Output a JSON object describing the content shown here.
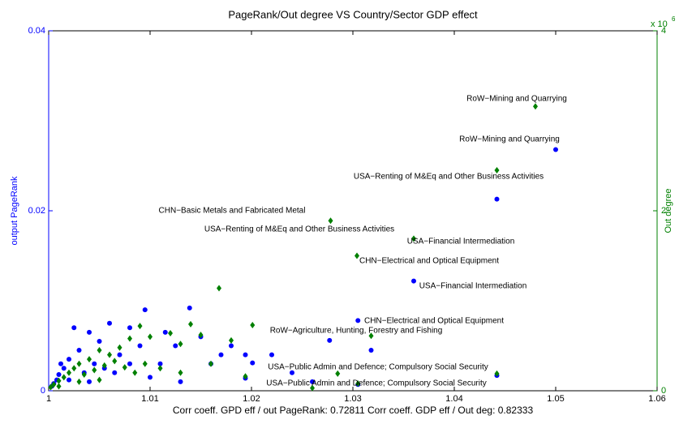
{
  "chart_data": {
    "type": "scatter",
    "title": "PageRank/Out degree VS Country/Sector GDP effect",
    "xlabel": "Corr coeff. GPD eff / out PageRank: 0.72811  Corr coeff. GDP eff / Out deg: 0.82333",
    "ylabel": "output PageRank",
    "y2label": "Out degree",
    "y2_multiplier": "x 10",
    "y2_multiplier_exp": "6",
    "xlim": [
      1,
      1.06
    ],
    "xticks": [
      1,
      1.01,
      1.02,
      1.03,
      1.04,
      1.05,
      1.06
    ],
    "ylim": [
      0,
      0.04
    ],
    "yticks": [
      0,
      0.02,
      0.04
    ],
    "y2lim": [
      0,
      4000000
    ],
    "y2ticks": [
      {
        "value": 0,
        "label": "0"
      },
      {
        "value": 2000000,
        "label": "2"
      },
      {
        "value": 4000000,
        "label": "4"
      }
    ],
    "series": [
      {
        "color": "#0000ff",
        "marker": "circle",
        "x": [
          1.05,
          1.0442,
          1.036,
          1.0305,
          1.0318,
          1.0277,
          1.0442,
          1.0305,
          1.0201,
          1.0194,
          1.0194,
          1.0139,
          1.0095,
          1.008,
          1.0115,
          1.0125,
          1.015,
          1.017,
          1.016,
          1.018,
          1.011,
          1.01,
          1.013,
          1.006,
          1.005,
          1.004,
          1.003,
          1.0025,
          1.007,
          1.009,
          1.002,
          1.0015,
          1.001,
          1.0008,
          1.0005,
          1.0003,
          1.0012,
          1.0035,
          1.0045,
          1.0055,
          1.0065,
          1.008,
          1.002,
          1.004,
          1.022,
          1.026,
          1.024
        ],
        "values": [
          0.0268,
          0.0213,
          0.0122,
          0.0078,
          0.0045,
          0.0056,
          0.0017,
          0.0007,
          0.0031,
          0.004,
          0.0014,
          0.0092,
          0.009,
          0.007,
          0.0065,
          0.005,
          0.006,
          0.004,
          0.003,
          0.005,
          0.003,
          0.0015,
          0.001,
          0.0075,
          0.0055,
          0.0065,
          0.0045,
          0.007,
          0.004,
          0.005,
          0.0035,
          0.0025,
          0.0018,
          0.0012,
          0.0008,
          0.0005,
          0.003,
          0.002,
          0.003,
          0.0025,
          0.002,
          0.003,
          0.0012,
          0.001,
          0.004,
          0.001,
          0.002
        ]
      },
      {
        "color": "#008000",
        "marker": "diamond",
        "axis": "y2",
        "x": [
          1.048,
          1.0442,
          1.0278,
          1.036,
          1.0304,
          1.0168,
          1.0201,
          1.0318,
          1.0442,
          1.0285,
          1.0305,
          1.0194,
          1.026,
          1.018,
          1.014,
          1.012,
          1.015,
          1.013,
          1.01,
          1.009,
          1.008,
          1.007,
          1.006,
          1.005,
          1.004,
          1.003,
          1.0025,
          1.002,
          1.0015,
          1.001,
          1.0005,
          1.0002,
          1.0035,
          1.0045,
          1.0055,
          1.0065,
          1.0075,
          1.0085,
          1.0095,
          1.011,
          1.016,
          1.013,
          1.001,
          1.003,
          1.005
        ],
        "values": [
          3160000,
          2450000,
          1890000,
          1690000,
          1500000,
          1140000,
          730000,
          610000,
          190000,
          190000,
          80000,
          160000,
          30000,
          560000,
          740000,
          640000,
          620000,
          520000,
          600000,
          720000,
          580000,
          480000,
          400000,
          450000,
          350000,
          300000,
          250000,
          200000,
          150000,
          110000,
          70000,
          40000,
          180000,
          230000,
          280000,
          330000,
          260000,
          200000,
          300000,
          250000,
          300000,
          200000,
          50000,
          100000,
          120000
        ]
      }
    ],
    "annotations": [
      "RoW−Mining and Quarrying",
      "RoW−Mining and Quarrying",
      "USA−Renting of M&Eq and Other Business Activities",
      "CHN−Basic Metals and Fabricated Metal",
      "USA−Renting of M&Eq and Other Business Activities",
      "USA−Financial Intermediation",
      "CHN−Electrical and Optical Equipment",
      "USA−Financial Intermediation",
      "CHN−Electrical and Optical Equipment",
      "RoW−Agriculture, Hunting, Forestry and Fishing",
      "USA−Public Admin and Defence; Compulsory Social Security",
      "USA−Public Admin and Defence; Compulsory Social Security"
    ]
  }
}
